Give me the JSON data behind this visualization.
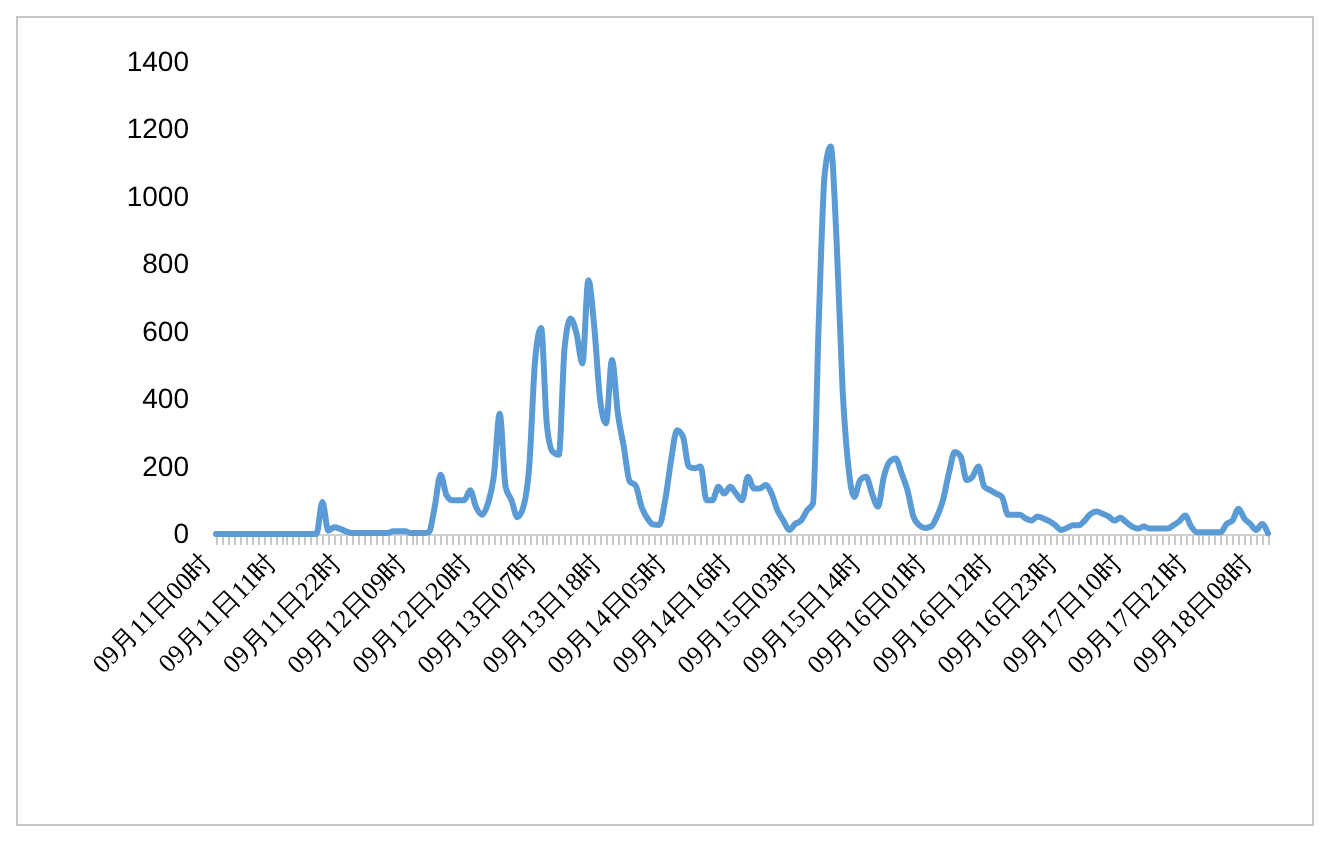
{
  "chart_data": {
    "type": "line",
    "categories": [
      "09月11日00时",
      null,
      null,
      null,
      null,
      null,
      null,
      null,
      null,
      null,
      null,
      "09月11日11时",
      null,
      null,
      null,
      null,
      null,
      null,
      null,
      null,
      null,
      null,
      "09月11日22时",
      null,
      null,
      null,
      null,
      null,
      null,
      null,
      null,
      null,
      null,
      "09月12日09时",
      null,
      null,
      null,
      null,
      null,
      null,
      null,
      null,
      null,
      null,
      "09月12日20时",
      null,
      null,
      null,
      null,
      null,
      null,
      null,
      null,
      null,
      null,
      "09月13日07时",
      null,
      null,
      null,
      null,
      null,
      null,
      null,
      null,
      null,
      null,
      "09月13日18时",
      null,
      null,
      null,
      null,
      null,
      null,
      null,
      null,
      null,
      null,
      "09月14日05时",
      null,
      null,
      null,
      null,
      null,
      null,
      null,
      null,
      null,
      null,
      "09月14日16时",
      null,
      null,
      null,
      null,
      null,
      null,
      null,
      null,
      null,
      null,
      "09月15日03时",
      null,
      null,
      null,
      null,
      null,
      null,
      null,
      null,
      null,
      null,
      "09月15日14时",
      null,
      null,
      null,
      null,
      null,
      null,
      null,
      null,
      null,
      null,
      "09月16日01时",
      null,
      null,
      null,
      null,
      null,
      null,
      null,
      null,
      null,
      null,
      "09月16日12时",
      null,
      null,
      null,
      null,
      null,
      null,
      null,
      null,
      null,
      null,
      "09月16日23时",
      null,
      null,
      null,
      null,
      null,
      null,
      null,
      null,
      null,
      null,
      "09月17日10时",
      null,
      null,
      null,
      null,
      null,
      null,
      null,
      null,
      null,
      null,
      "09月17日21时",
      null,
      null,
      null,
      null,
      null,
      null,
      null,
      null,
      null,
      null,
      "09月18日08时",
      null,
      null
    ],
    "series": [
      {
        "color": "#5b9bd5",
        "values": [
          0,
          0,
          0,
          0,
          0,
          0,
          0,
          0,
          0,
          0,
          0,
          0,
          0,
          0,
          0,
          0,
          0,
          0,
          95,
          10,
          20,
          15,
          8,
          3,
          3,
          3,
          3,
          3,
          3,
          3,
          8,
          8,
          8,
          3,
          3,
          3,
          5,
          80,
          176,
          115,
          100,
          100,
          100,
          130,
          80,
          57,
          90,
          170,
          357,
          140,
          100,
          50,
          80,
          200,
          516,
          611,
          320,
          243,
          235,
          556,
          639,
          595,
          506,
          753,
          615,
          397,
          328,
          516,
          357,
          259,
          156,
          144,
          81,
          46,
          28,
          27,
          100,
          219,
          308,
          289,
          200,
          195,
          200,
          100,
          100,
          140,
          120,
          140,
          120,
          100,
          170,
          135,
          135,
          145,
          120,
          70,
          40,
          12,
          30,
          40,
          70,
          90,
          635,
          1069,
          1149,
          872,
          437,
          200,
          110,
          160,
          170,
          120,
          81,
          170,
          215,
          224,
          180,
          130,
          52,
          26,
          18,
          22,
          52,
          100,
          180,
          243,
          230,
          160,
          170,
          200,
          140,
          130,
          120,
          110,
          57,
          57,
          57,
          46,
          40,
          52,
          46,
          38,
          26,
          12,
          18,
          26,
          26,
          40,
          60,
          67,
          60,
          52,
          40,
          48,
          35,
          22,
          16,
          22,
          16,
          16,
          16,
          16,
          26,
          38,
          55,
          22,
          5,
          5,
          5,
          5,
          5,
          30,
          40,
          75,
          46,
          30,
          12,
          30,
          2
        ]
      }
    ],
    "ylim": [
      0,
      1400
    ],
    "yticks": [
      0,
      200,
      400,
      600,
      800,
      1000,
      1200,
      1400
    ],
    "grid": false,
    "line_style": "solid",
    "marker": "none"
  }
}
